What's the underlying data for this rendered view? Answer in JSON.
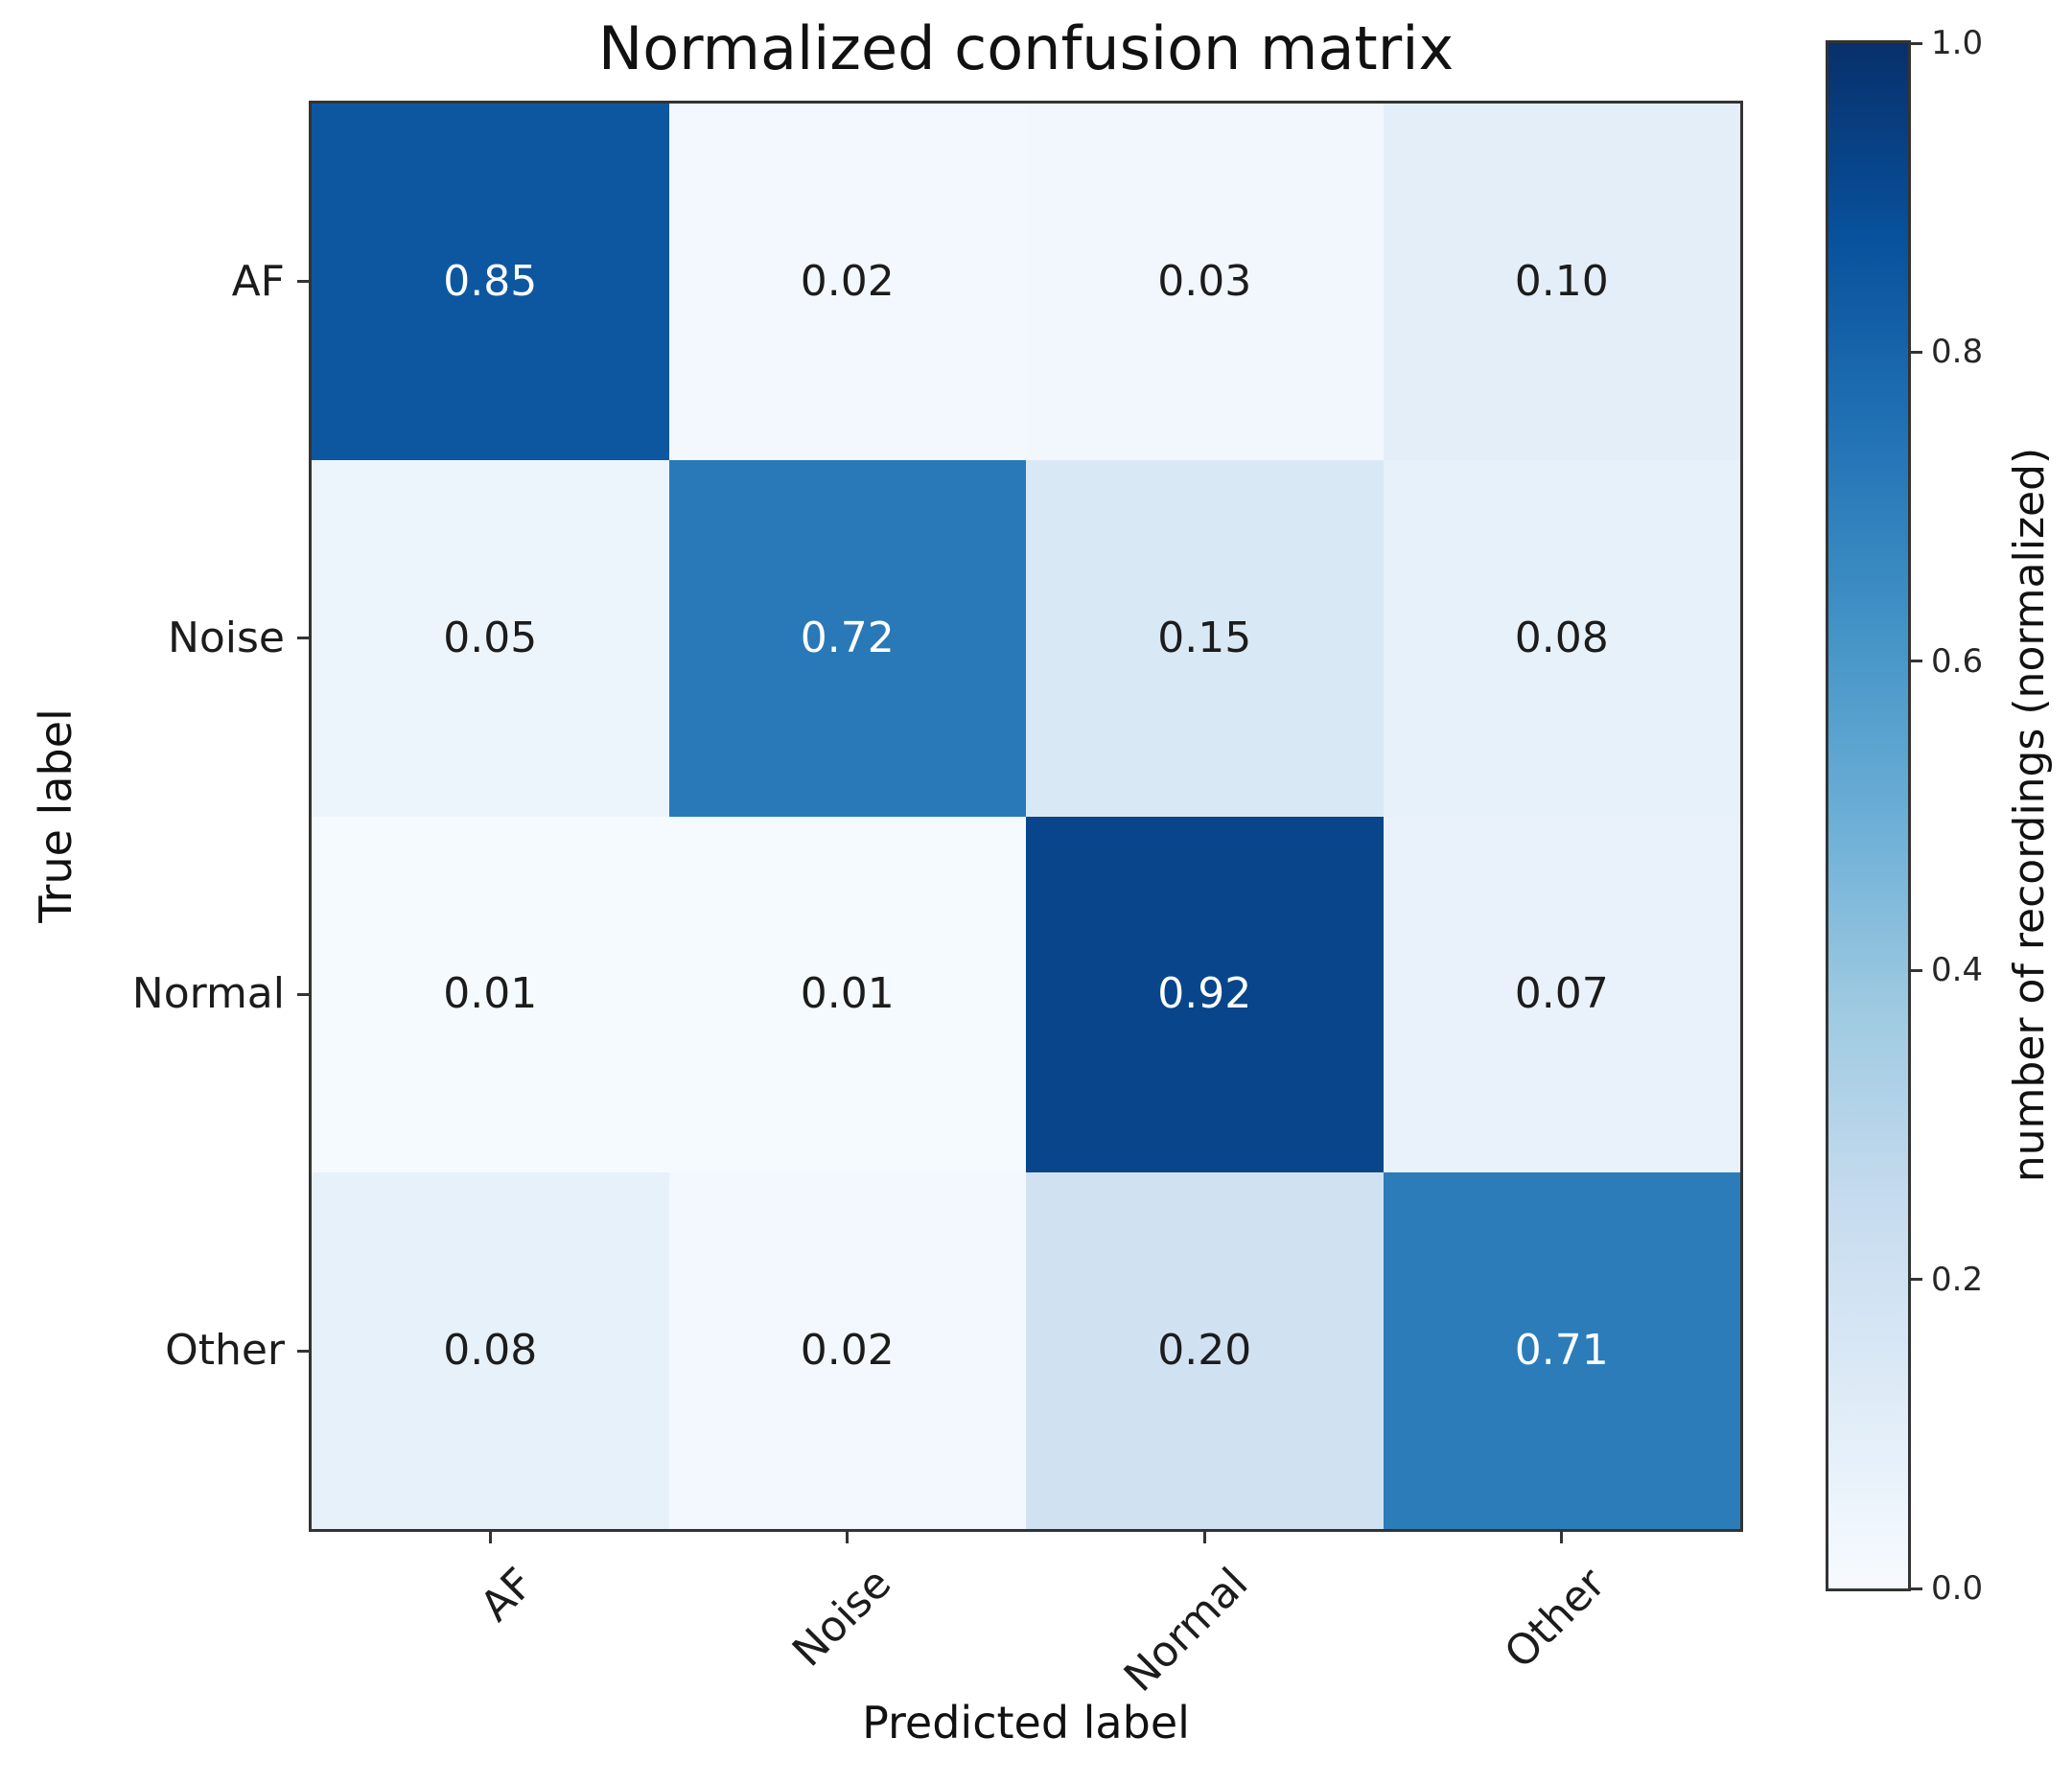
{
  "chart_data": {
    "type": "heatmap",
    "title": "Normalized confusion matrix",
    "xlabel": "Predicted label",
    "ylabel": "True label",
    "x_categories": [
      "AF",
      "Noise",
      "Normal",
      "Other"
    ],
    "y_categories": [
      "AF",
      "Noise",
      "Normal",
      "Other"
    ],
    "rows": [
      {
        "label": "AF",
        "values": [
          0.85,
          0.02,
          0.03,
          0.1
        ],
        "display": [
          "0.85",
          "0.02",
          "0.03",
          "0.10"
        ]
      },
      {
        "label": "Noise",
        "values": [
          0.05,
          0.72,
          0.15,
          0.08
        ],
        "display": [
          "0.05",
          "0.72",
          "0.15",
          "0.08"
        ]
      },
      {
        "label": "Normal",
        "values": [
          0.01,
          0.01,
          0.92,
          0.07
        ],
        "display": [
          "0.01",
          "0.01",
          "0.92",
          "0.07"
        ]
      },
      {
        "label": "Other",
        "values": [
          0.08,
          0.02,
          0.2,
          0.71
        ],
        "display": [
          "0.08",
          "0.02",
          "0.20",
          "0.71"
        ]
      }
    ],
    "value_range": [
      0.0,
      1.0
    ],
    "colormap": {
      "name": "Blues",
      "stops": [
        [
          0.0,
          "#f7fbff"
        ],
        [
          0.125,
          "#deebf7"
        ],
        [
          0.25,
          "#c6dbef"
        ],
        [
          0.375,
          "#9ecae1"
        ],
        [
          0.5,
          "#6baed6"
        ],
        [
          0.625,
          "#4292c6"
        ],
        [
          0.75,
          "#2171b5"
        ],
        [
          0.875,
          "#08519c"
        ],
        [
          1.0,
          "#08306b"
        ]
      ]
    },
    "cell_text_colors": {
      "above_threshold": "#ffffff",
      "below_threshold": "#1c1c1c",
      "threshold": 0.5
    },
    "colorbar": {
      "label": "number of recordings (normalized)",
      "position": "right",
      "ticks": [
        {
          "label": "1.0",
          "value": 1.0
        },
        {
          "label": "0.8",
          "value": 0.8
        },
        {
          "label": "0.6",
          "value": 0.6
        },
        {
          "label": "0.4",
          "value": 0.4
        },
        {
          "label": "0.2",
          "value": 0.2
        },
        {
          "label": "0.0",
          "value": 0.0
        }
      ]
    },
    "layout_hints": {
      "x_tick_rotation_deg": 45,
      "grid": false,
      "legend": false
    }
  }
}
